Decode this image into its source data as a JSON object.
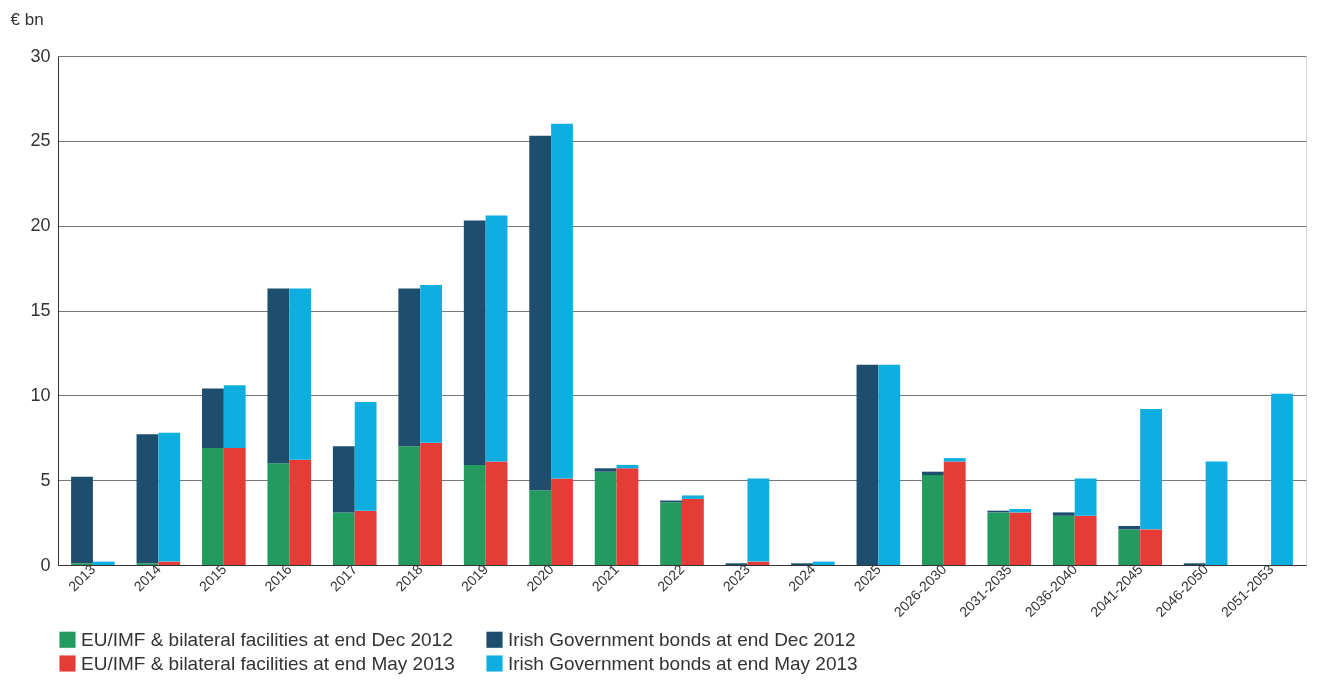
{
  "chart_data": {
    "type": "bar",
    "stacked": true,
    "ylabel": "€ bn",
    "categories": [
      "2013",
      null,
      "2014",
      null,
      "2015",
      null,
      "2016",
      null,
      "2017",
      null,
      "2018",
      null,
      "2019",
      null,
      "2020",
      null,
      "2021",
      null,
      "2022",
      null,
      "2023",
      null,
      "2024",
      null,
      "2025",
      null,
      "2026-2030",
      null,
      "2031-2035",
      null,
      "2036-2040",
      null,
      "2041-2045",
      null,
      "2046-2050",
      null,
      "2051-2053",
      null
    ],
    "series": [
      {
        "name": "EU/IMF & bilateral facilities at end Dec 2012",
        "color": "#239b5e",
        "values": [
          0.1,
          null,
          0.1,
          null,
          6.9,
          null,
          6.0,
          null,
          3.1,
          null,
          7.0,
          null,
          5.9,
          null,
          4.4,
          null,
          5.5,
          null,
          3.7,
          null,
          0,
          null,
          0,
          null,
          0,
          null,
          5.3,
          null,
          3.1,
          null,
          2.9,
          null,
          2.1,
          null,
          0,
          null,
          0,
          null
        ]
      },
      {
        "name": "Irish Government bonds at end Dec 2012",
        "color": "#1d4e6e",
        "values": [
          5.1,
          null,
          7.6,
          null,
          3.5,
          null,
          10.3,
          null,
          3.9,
          null,
          9.3,
          null,
          14.4,
          null,
          20.9,
          null,
          0.2,
          null,
          0.1,
          null,
          0.1,
          null,
          0.1,
          null,
          11.8,
          null,
          0.2,
          null,
          0.1,
          null,
          0.2,
          null,
          0.2,
          null,
          0.1,
          null,
          0,
          null
        ]
      },
      {
        "name": "EU/IMF & bilateral facilities at end May 2013",
        "color": "#e53c38",
        "values": [
          null,
          0,
          null,
          0.2,
          null,
          6.9,
          null,
          6.2,
          null,
          3.2,
          null,
          7.2,
          null,
          6.1,
          null,
          5.1,
          null,
          5.7,
          null,
          3.9,
          null,
          0.2,
          null,
          0,
          null,
          0,
          null,
          6.1,
          null,
          3.1,
          null,
          2.9,
          null,
          2.1,
          null,
          0,
          null,
          0
        ]
      },
      {
        "name": "Irish Government bonds at end May 2013",
        "color": "#0faee1",
        "values": [
          null,
          0.2,
          null,
          7.6,
          null,
          3.7,
          null,
          10.1,
          null,
          6.4,
          null,
          9.3,
          null,
          14.5,
          null,
          20.9,
          null,
          0.2,
          null,
          0.2,
          null,
          4.9,
          null,
          0.2,
          null,
          11.8,
          null,
          0.2,
          null,
          0.2,
          null,
          2.2,
          null,
          7.1,
          null,
          6.1,
          null,
          10.1
        ]
      }
    ],
    "ylim": [
      0,
      30
    ],
    "yticks": [
      0,
      5,
      10,
      15,
      20,
      25,
      30
    ],
    "grid": "y",
    "legend": "bottom"
  }
}
